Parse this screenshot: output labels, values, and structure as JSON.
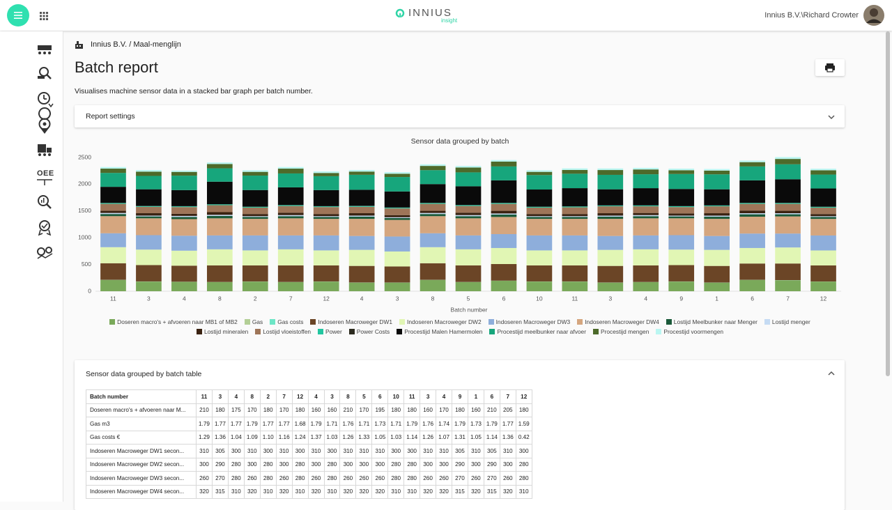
{
  "header": {
    "logo": "INNIUS",
    "logo_sub": "insight",
    "user": "Innius B.V.\\Richard Crowter"
  },
  "sidebar": {
    "oee_label": "OEE"
  },
  "breadcrumb": "Innius B.V. / Maal-menglijn",
  "title": "Batch report",
  "description": "Visualises machine sensor data in a stacked bar graph per batch number.",
  "report_settings": "Report settings",
  "chart_data": {
    "type": "bar",
    "stacked": true,
    "title": "Sensor data grouped by batch",
    "x_label": "Batch number",
    "categories": [
      "11",
      "3",
      "4",
      "8",
      "2",
      "7",
      "12",
      "4",
      "3",
      "8",
      "5",
      "6",
      "10",
      "11",
      "3",
      "4",
      "9",
      "1",
      "6",
      "7",
      "12"
    ],
    "ylim": [
      0,
      2500
    ],
    "yticks": [
      0,
      500,
      1000,
      1500,
      2000,
      2500
    ],
    "grid": false,
    "legend": "bottom",
    "series": [
      {
        "name": "Doseren macro's + afvoeren naar MB1 of MB2",
        "color": "#7aa95a",
        "values": [
          210,
          180,
          175,
          170,
          180,
          170,
          180,
          160,
          160,
          210,
          170,
          195,
          180,
          180,
          160,
          170,
          180,
          160,
          210,
          205,
          180
        ]
      },
      {
        "name": "Gas",
        "color": "#b3cf96",
        "values": [
          1.79,
          1.77,
          1.77,
          1.79,
          1.77,
          1.77,
          1.68,
          1.79,
          1.71,
          1.76,
          1.71,
          1.73,
          1.71,
          1.79,
          1.76,
          1.74,
          1.79,
          1.73,
          1.79,
          1.77,
          1.59
        ]
      },
      {
        "name": "Gas costs",
        "color": "#6de6c6",
        "values": [
          1.29,
          1.36,
          1.04,
          1.09,
          1.1,
          1.16,
          1.24,
          1.37,
          1.03,
          1.26,
          1.33,
          1.05,
          1.03,
          1.14,
          1.26,
          1.07,
          1.31,
          1.05,
          1.14,
          1.36,
          0.42
        ]
      },
      {
        "name": "Indoseren Macroweger DW1",
        "color": "#6b4526",
        "values": [
          310,
          305,
          300,
          310,
          300,
          310,
          300,
          310,
          300,
          310,
          310,
          310,
          300,
          300,
          310,
          310,
          305,
          310,
          305,
          310,
          300
        ]
      },
      {
        "name": "Indoseren Macroweger DW2",
        "color": "#e1f6b4",
        "values": [
          300,
          290,
          280,
          300,
          280,
          300,
          280,
          300,
          280,
          300,
          300,
          300,
          280,
          280,
          300,
          300,
          290,
          300,
          290,
          300,
          280
        ]
      },
      {
        "name": "Indoseren Macroweger DW3",
        "color": "#8eaedb",
        "values": [
          260,
          270,
          280,
          260,
          280,
          260,
          280,
          260,
          280,
          260,
          260,
          260,
          280,
          280,
          260,
          260,
          270,
          260,
          270,
          260,
          280
        ]
      },
      {
        "name": "Indoseren Macroweger DW4",
        "color": "#d5a67f",
        "values": [
          320,
          315,
          310,
          320,
          310,
          320,
          310,
          320,
          310,
          320,
          320,
          320,
          310,
          310,
          320,
          320,
          315,
          320,
          315,
          320,
          310
        ]
      },
      {
        "name": "Lostijd Meelbunker naar Menger",
        "color": "#1b5a3a",
        "values": [
          40,
          35,
          40,
          45,
          35,
          40,
          35,
          40,
          35,
          40,
          40,
          45,
          35,
          35,
          40,
          40,
          35,
          40,
          45,
          40,
          35
        ]
      },
      {
        "name": "Lostijd menger",
        "color": "#c5dbf3",
        "values": [
          20,
          15,
          20,
          20,
          15,
          20,
          15,
          20,
          15,
          20,
          20,
          20,
          15,
          15,
          20,
          20,
          15,
          20,
          20,
          20,
          15
        ]
      },
      {
        "name": "Lostijd mineralen",
        "color": "#3a2211",
        "values": [
          40,
          45,
          40,
          50,
          40,
          45,
          40,
          45,
          40,
          40,
          45,
          50,
          40,
          40,
          45,
          40,
          40,
          45,
          50,
          45,
          40
        ]
      },
      {
        "name": "Lostijd vloeistoffen",
        "color": "#9e7558",
        "values": [
          130,
          120,
          125,
          130,
          120,
          125,
          130,
          120,
          125,
          130,
          125,
          130,
          120,
          125,
          130,
          125,
          120,
          130,
          125,
          130,
          120
        ]
      },
      {
        "name": "Power",
        "color": "#22c6a0",
        "values": [
          15,
          14,
          14,
          16,
          15,
          15,
          14,
          15,
          14,
          16,
          15,
          16,
          15,
          15,
          14,
          15,
          15,
          14,
          16,
          16,
          15
        ]
      },
      {
        "name": "Power Costs",
        "color": "#2c2b1f",
        "values": [
          3.2,
          3.0,
          3.1,
          3.4,
          3.1,
          3.2,
          3.0,
          3.1,
          3.0,
          3.3,
          3.2,
          3.4,
          3.1,
          3.2,
          3.0,
          3.1,
          3.1,
          3.0,
          3.4,
          3.3,
          3.1
        ]
      },
      {
        "name": "Procestijd Malen Hamermolen",
        "color": "#0a0a0a",
        "values": [
          300,
          310,
          300,
          420,
          310,
          330,
          300,
          300,
          300,
          350,
          350,
          420,
          320,
          340,
          300,
          320,
          320,
          300,
          420,
          440,
          340
        ]
      },
      {
        "name": "Procestijd meelbunker naar afvoer",
        "color": "#17a67c",
        "values": [
          260,
          250,
          270,
          250,
          270,
          260,
          260,
          280,
          270,
          260,
          260,
          260,
          270,
          270,
          270,
          260,
          280,
          280,
          260,
          280,
          260
        ]
      },
      {
        "name": "Procestijd mengen",
        "color": "#4d6a2a",
        "values": [
          80,
          80,
          70,
          80,
          70,
          90,
          60,
          60,
          60,
          80,
          90,
          90,
          60,
          70,
          90,
          90,
          70,
          70,
          80,
          100,
          80
        ]
      },
      {
        "name": "Procestijd voormengen",
        "color": "#baf6f1",
        "values": [
          30,
          30,
          25,
          30,
          30,
          30,
          30,
          30,
          30,
          30,
          30,
          30,
          30,
          30,
          30,
          30,
          30,
          30,
          30,
          35,
          30
        ]
      }
    ]
  },
  "table": {
    "title": "Sensor data grouped by batch table",
    "header": [
      "Batch number",
      "11",
      "3",
      "4",
      "8",
      "2",
      "7",
      "12",
      "4",
      "3",
      "8",
      "5",
      "6",
      "10",
      "11",
      "3",
      "4",
      "9",
      "1",
      "6",
      "7",
      "12"
    ],
    "rows": [
      [
        "Doseren macro's + afvoeren naar M...",
        "210",
        "180",
        "175",
        "170",
        "180",
        "170",
        "180",
        "160",
        "160",
        "210",
        "170",
        "195",
        "180",
        "180",
        "160",
        "170",
        "180",
        "160",
        "210",
        "205",
        "180"
      ],
      [
        "Gas m3",
        "1.79",
        "1.77",
        "1.77",
        "1.79",
        "1.77",
        "1.77",
        "1.68",
        "1.79",
        "1.71",
        "1.76",
        "1.71",
        "1.73",
        "1.71",
        "1.79",
        "1.76",
        "1.74",
        "1.79",
        "1.73",
        "1.79",
        "1.77",
        "1.59"
      ],
      [
        "Gas costs €",
        "1.29",
        "1.36",
        "1.04",
        "1.09",
        "1.10",
        "1.16",
        "1.24",
        "1.37",
        "1.03",
        "1.26",
        "1.33",
        "1.05",
        "1.03",
        "1.14",
        "1.26",
        "1.07",
        "1.31",
        "1.05",
        "1.14",
        "1.36",
        "0.42"
      ],
      [
        "Indoseren Macroweger DW1 secon...",
        "310",
        "305",
        "300",
        "310",
        "300",
        "310",
        "300",
        "310",
        "300",
        "310",
        "310",
        "310",
        "300",
        "300",
        "310",
        "310",
        "305",
        "310",
        "305",
        "310",
        "300"
      ],
      [
        "Indoseren Macroweger DW2 secon...",
        "300",
        "290",
        "280",
        "300",
        "280",
        "300",
        "280",
        "300",
        "280",
        "300",
        "300",
        "300",
        "280",
        "280",
        "300",
        "300",
        "290",
        "300",
        "290",
        "300",
        "280"
      ],
      [
        "Indoseren Macroweger DW3 secon...",
        "260",
        "270",
        "280",
        "260",
        "280",
        "260",
        "280",
        "260",
        "280",
        "260",
        "260",
        "260",
        "280",
        "280",
        "260",
        "260",
        "270",
        "260",
        "270",
        "260",
        "280"
      ],
      [
        "Indoseren Macroweger DW4 secon...",
        "320",
        "315",
        "310",
        "320",
        "310",
        "320",
        "310",
        "320",
        "310",
        "320",
        "320",
        "320",
        "310",
        "310",
        "320",
        "320",
        "315",
        "320",
        "315",
        "320",
        "310"
      ]
    ]
  }
}
